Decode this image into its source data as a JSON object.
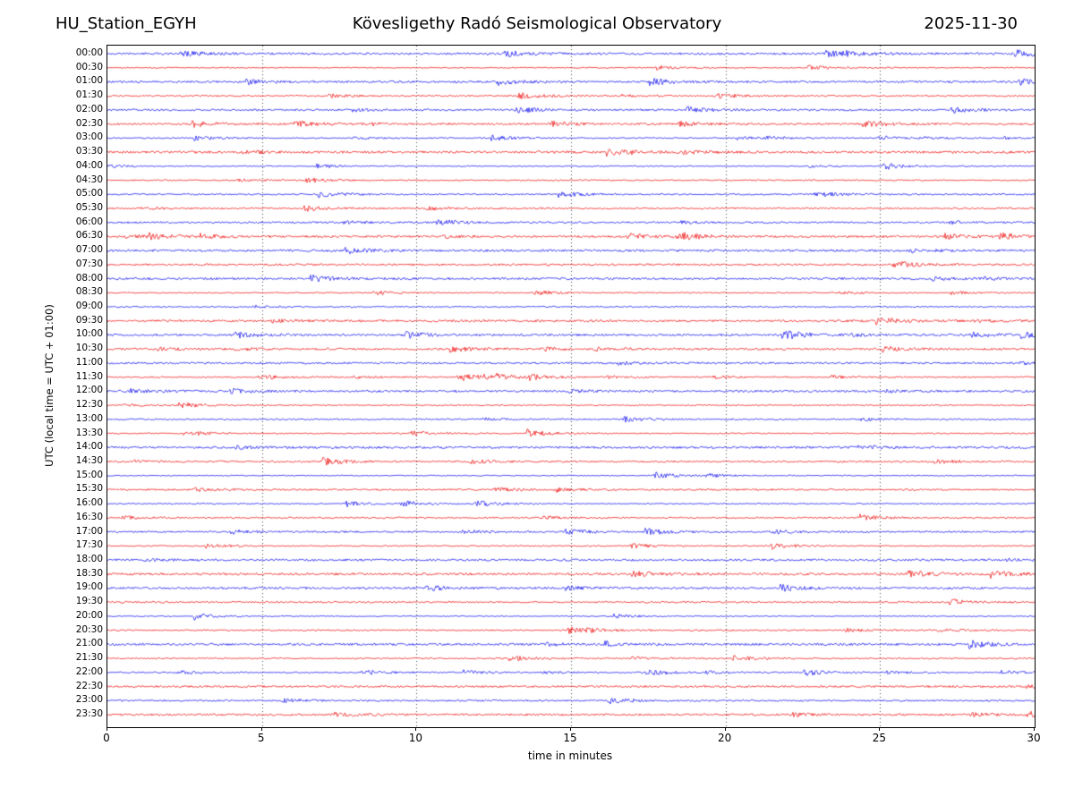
{
  "header": {
    "station": "HU_Station_EGYH",
    "title": "Kövesligethy Radó Seismological Observatory",
    "date": "2025-11-30"
  },
  "chart_data": {
    "type": "line",
    "subtype": "helicorder-seismogram",
    "station": "HU_Station_EGYH",
    "title": "Kövesligethy Radó Seismological Observatory",
    "date": "2025-11-30",
    "xlabel": "time in minutes",
    "ylabel": "UTC (local time = UTC + 01:00)",
    "xlim": [
      0,
      30
    ],
    "x_ticks": [
      0,
      5,
      10,
      15,
      20,
      25,
      30
    ],
    "gridlines_x": [
      5,
      10,
      15,
      20,
      25
    ],
    "grid_style": "dotted",
    "minutes_per_row": 30,
    "rows_per_day": 48,
    "row_labels": [
      "00:00",
      "00:30",
      "01:00",
      "01:30",
      "02:00",
      "02:30",
      "03:00",
      "03:30",
      "04:00",
      "04:30",
      "05:00",
      "05:30",
      "06:00",
      "06:30",
      "07:00",
      "07:30",
      "08:00",
      "08:30",
      "09:00",
      "09:30",
      "10:00",
      "10:30",
      "11:00",
      "11:30",
      "12:00",
      "12:30",
      "13:00",
      "13:30",
      "14:00",
      "14:30",
      "15:00",
      "15:30",
      "16:00",
      "16:30",
      "17:00",
      "17:30",
      "18:00",
      "18:30",
      "19:00",
      "19:30",
      "20:00",
      "20:30",
      "21:00",
      "21:30",
      "22:00",
      "22:30",
      "23:00",
      "23:30"
    ],
    "trace_color_even": "#0000ee",
    "trace_color_odd": "#ee0000",
    "frame_color": "#000000"
  }
}
